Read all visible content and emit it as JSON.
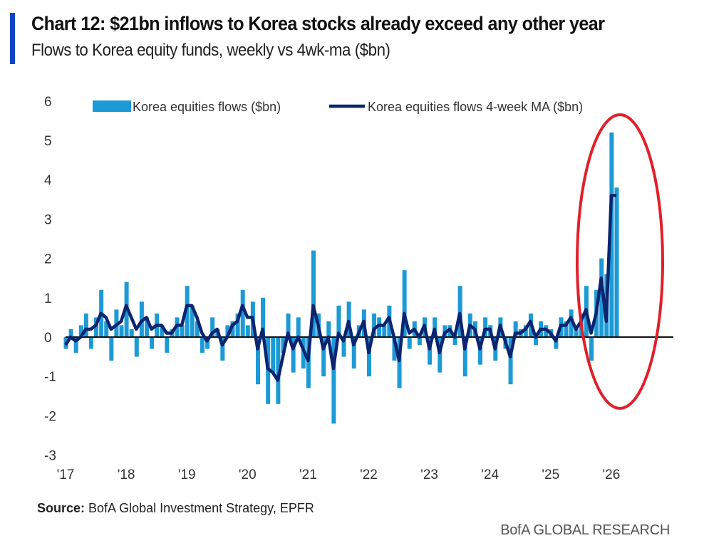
{
  "header": {
    "title": "Chart 12: $21bn inflows to Korea stocks already exceed any other year",
    "subtitle": "Flows to Korea equity funds, weekly vs 4wk-ma ($bn)"
  },
  "footer": {
    "source_label": "Source:",
    "source_text": " BofA Global Investment Strategy, EPFR",
    "brand": "BofA GLOBAL RESEARCH"
  },
  "colors": {
    "bars": "#1c9ad6",
    "ma_line": "#0a2470",
    "zero_line": "#111111",
    "highlight_ellipse": "#e0202a",
    "accent": "#0b47c4"
  },
  "chart_data": {
    "type": "bar+line",
    "title": "Chart 12: $21bn inflows to Korea stocks already exceed any other year",
    "subtitle": "Flows to Korea equity funds, weekly vs 4wk-ma ($bn)",
    "legend_placement": "top",
    "ylim": [
      -3,
      6
    ],
    "yticks": [
      "6",
      "5",
      "4",
      "3",
      "2",
      "1",
      "0",
      "-1",
      "-2",
      "-3"
    ],
    "ytick_values": [
      6,
      5,
      4,
      3,
      2,
      1,
      0,
      -1,
      -2,
      -3
    ],
    "xticks": [
      "'17",
      "'18",
      "'19",
      "'20",
      "'21",
      "'22",
      "'23",
      "'24",
      "'25",
      "'26"
    ],
    "xtick_years": [
      2017,
      2018,
      2019,
      2020,
      2021,
      2022,
      2023,
      2024,
      2025,
      2026
    ],
    "xlim": [
      "2017-01",
      "2026-12"
    ],
    "grid": false,
    "annotation": "red ellipse highlighting 2025-26 surge",
    "dates": [
      "2017-01",
      "2017-02",
      "2017-03",
      "2017-04",
      "2017-05",
      "2017-06",
      "2017-07",
      "2017-08",
      "2017-09",
      "2017-10",
      "2017-11",
      "2017-12",
      "2018-01",
      "2018-02",
      "2018-03",
      "2018-04",
      "2018-05",
      "2018-06",
      "2018-07",
      "2018-08",
      "2018-09",
      "2018-10",
      "2018-11",
      "2018-12",
      "2019-01",
      "2019-02",
      "2019-03",
      "2019-04",
      "2019-05",
      "2019-06",
      "2019-07",
      "2019-08",
      "2019-09",
      "2019-10",
      "2019-11",
      "2019-12",
      "2020-01",
      "2020-02",
      "2020-03",
      "2020-04",
      "2020-05",
      "2020-06",
      "2020-07",
      "2020-08",
      "2020-09",
      "2020-10",
      "2020-11",
      "2020-12",
      "2021-01",
      "2021-02",
      "2021-03",
      "2021-04",
      "2021-05",
      "2021-06",
      "2021-07",
      "2021-08",
      "2021-09",
      "2021-10",
      "2021-11",
      "2021-12",
      "2022-01",
      "2022-02",
      "2022-03",
      "2022-04",
      "2022-05",
      "2022-06",
      "2022-07",
      "2022-08",
      "2022-09",
      "2022-10",
      "2022-11",
      "2022-12",
      "2023-01",
      "2023-02",
      "2023-03",
      "2023-04",
      "2023-05",
      "2023-06",
      "2023-07",
      "2023-08",
      "2023-09",
      "2023-10",
      "2023-11",
      "2023-12",
      "2024-01",
      "2024-02",
      "2024-03",
      "2024-04",
      "2024-05",
      "2024-06",
      "2024-07",
      "2024-08",
      "2024-09",
      "2024-10",
      "2024-11",
      "2024-12",
      "2025-01",
      "2025-02",
      "2025-03",
      "2025-04",
      "2025-05",
      "2025-06",
      "2025-07",
      "2025-08",
      "2025-09",
      "2025-10",
      "2025-11",
      "2025-12",
      "2026-01",
      "2026-02"
    ],
    "series": [
      {
        "name": "Korea equities flows ($bn)",
        "type": "bar",
        "values": [
          -0.3,
          0.2,
          -0.4,
          0.3,
          0.6,
          -0.3,
          0.5,
          1.2,
          0.4,
          -0.6,
          0.7,
          0.3,
          1.4,
          0.2,
          -0.5,
          0.9,
          0.5,
          -0.3,
          0.6,
          0.3,
          -0.4,
          0.2,
          0.5,
          0.3,
          1.3,
          0.8,
          0.4,
          -0.4,
          -0.3,
          0.5,
          0.2,
          -0.6,
          0.3,
          0.4,
          0.6,
          1.2,
          0.3,
          0.9,
          -1.2,
          1.0,
          -1.7,
          -0.9,
          -1.7,
          -0.4,
          0.6,
          -0.9,
          0.5,
          -0.8,
          -1.3,
          2.2,
          0.6,
          -1.0,
          0.4,
          -2.2,
          0.8,
          -0.5,
          0.9,
          -0.8,
          0.3,
          0.7,
          -1.0,
          0.6,
          0.5,
          0.3,
          0.8,
          -0.6,
          -1.3,
          1.7,
          -0.3,
          0.4,
          -0.2,
          0.5,
          -0.7,
          0.5,
          -0.9,
          0.3,
          0.3,
          -0.2,
          1.3,
          -1.0,
          0.6,
          0.4,
          -0.7,
          0.5,
          0.3,
          -0.6,
          0.5,
          -0.3,
          -1.2,
          0.4,
          0.2,
          0.3,
          0.6,
          -0.2,
          0.4,
          0.3,
          0.2,
          -0.3,
          0.5,
          0.4,
          0.7,
          0.2,
          0.6,
          1.3,
          -0.6,
          1.2,
          2.0,
          1.6,
          5.2,
          3.8
        ]
      },
      {
        "name": "Korea equities flows 4-week MA ($bn)",
        "type": "line",
        "values": [
          -0.2,
          0.0,
          -0.1,
          0.0,
          0.2,
          0.2,
          0.3,
          0.6,
          0.5,
          0.2,
          0.3,
          0.4,
          0.8,
          0.5,
          0.2,
          0.4,
          0.5,
          0.2,
          0.3,
          0.3,
          0.1,
          0.1,
          0.3,
          0.3,
          0.8,
          0.8,
          0.5,
          0.1,
          -0.1,
          0.1,
          0.2,
          -0.2,
          0.0,
          0.3,
          0.4,
          0.8,
          0.5,
          0.5,
          -0.3,
          0.2,
          -0.8,
          -0.9,
          -1.1,
          -0.5,
          0.1,
          -0.3,
          0.0,
          -0.3,
          -0.6,
          0.8,
          0.3,
          -0.3,
          0.0,
          -0.8,
          0.1,
          -0.1,
          0.4,
          -0.2,
          0.1,
          0.4,
          -0.4,
          0.2,
          0.3,
          0.3,
          0.5,
          0.0,
          -0.6,
          0.6,
          0.1,
          0.2,
          0.0,
          0.3,
          -0.3,
          0.2,
          -0.4,
          0.1,
          0.2,
          0.0,
          0.6,
          -0.3,
          0.3,
          0.2,
          -0.3,
          0.2,
          0.2,
          -0.3,
          0.3,
          -0.1,
          -0.5,
          0.1,
          0.1,
          0.2,
          0.4,
          0.0,
          0.2,
          0.2,
          0.1,
          -0.1,
          0.3,
          0.3,
          0.5,
          0.2,
          0.4,
          0.7,
          0.1,
          0.6,
          1.5,
          0.4,
          3.6,
          3.6
        ]
      }
    ]
  }
}
